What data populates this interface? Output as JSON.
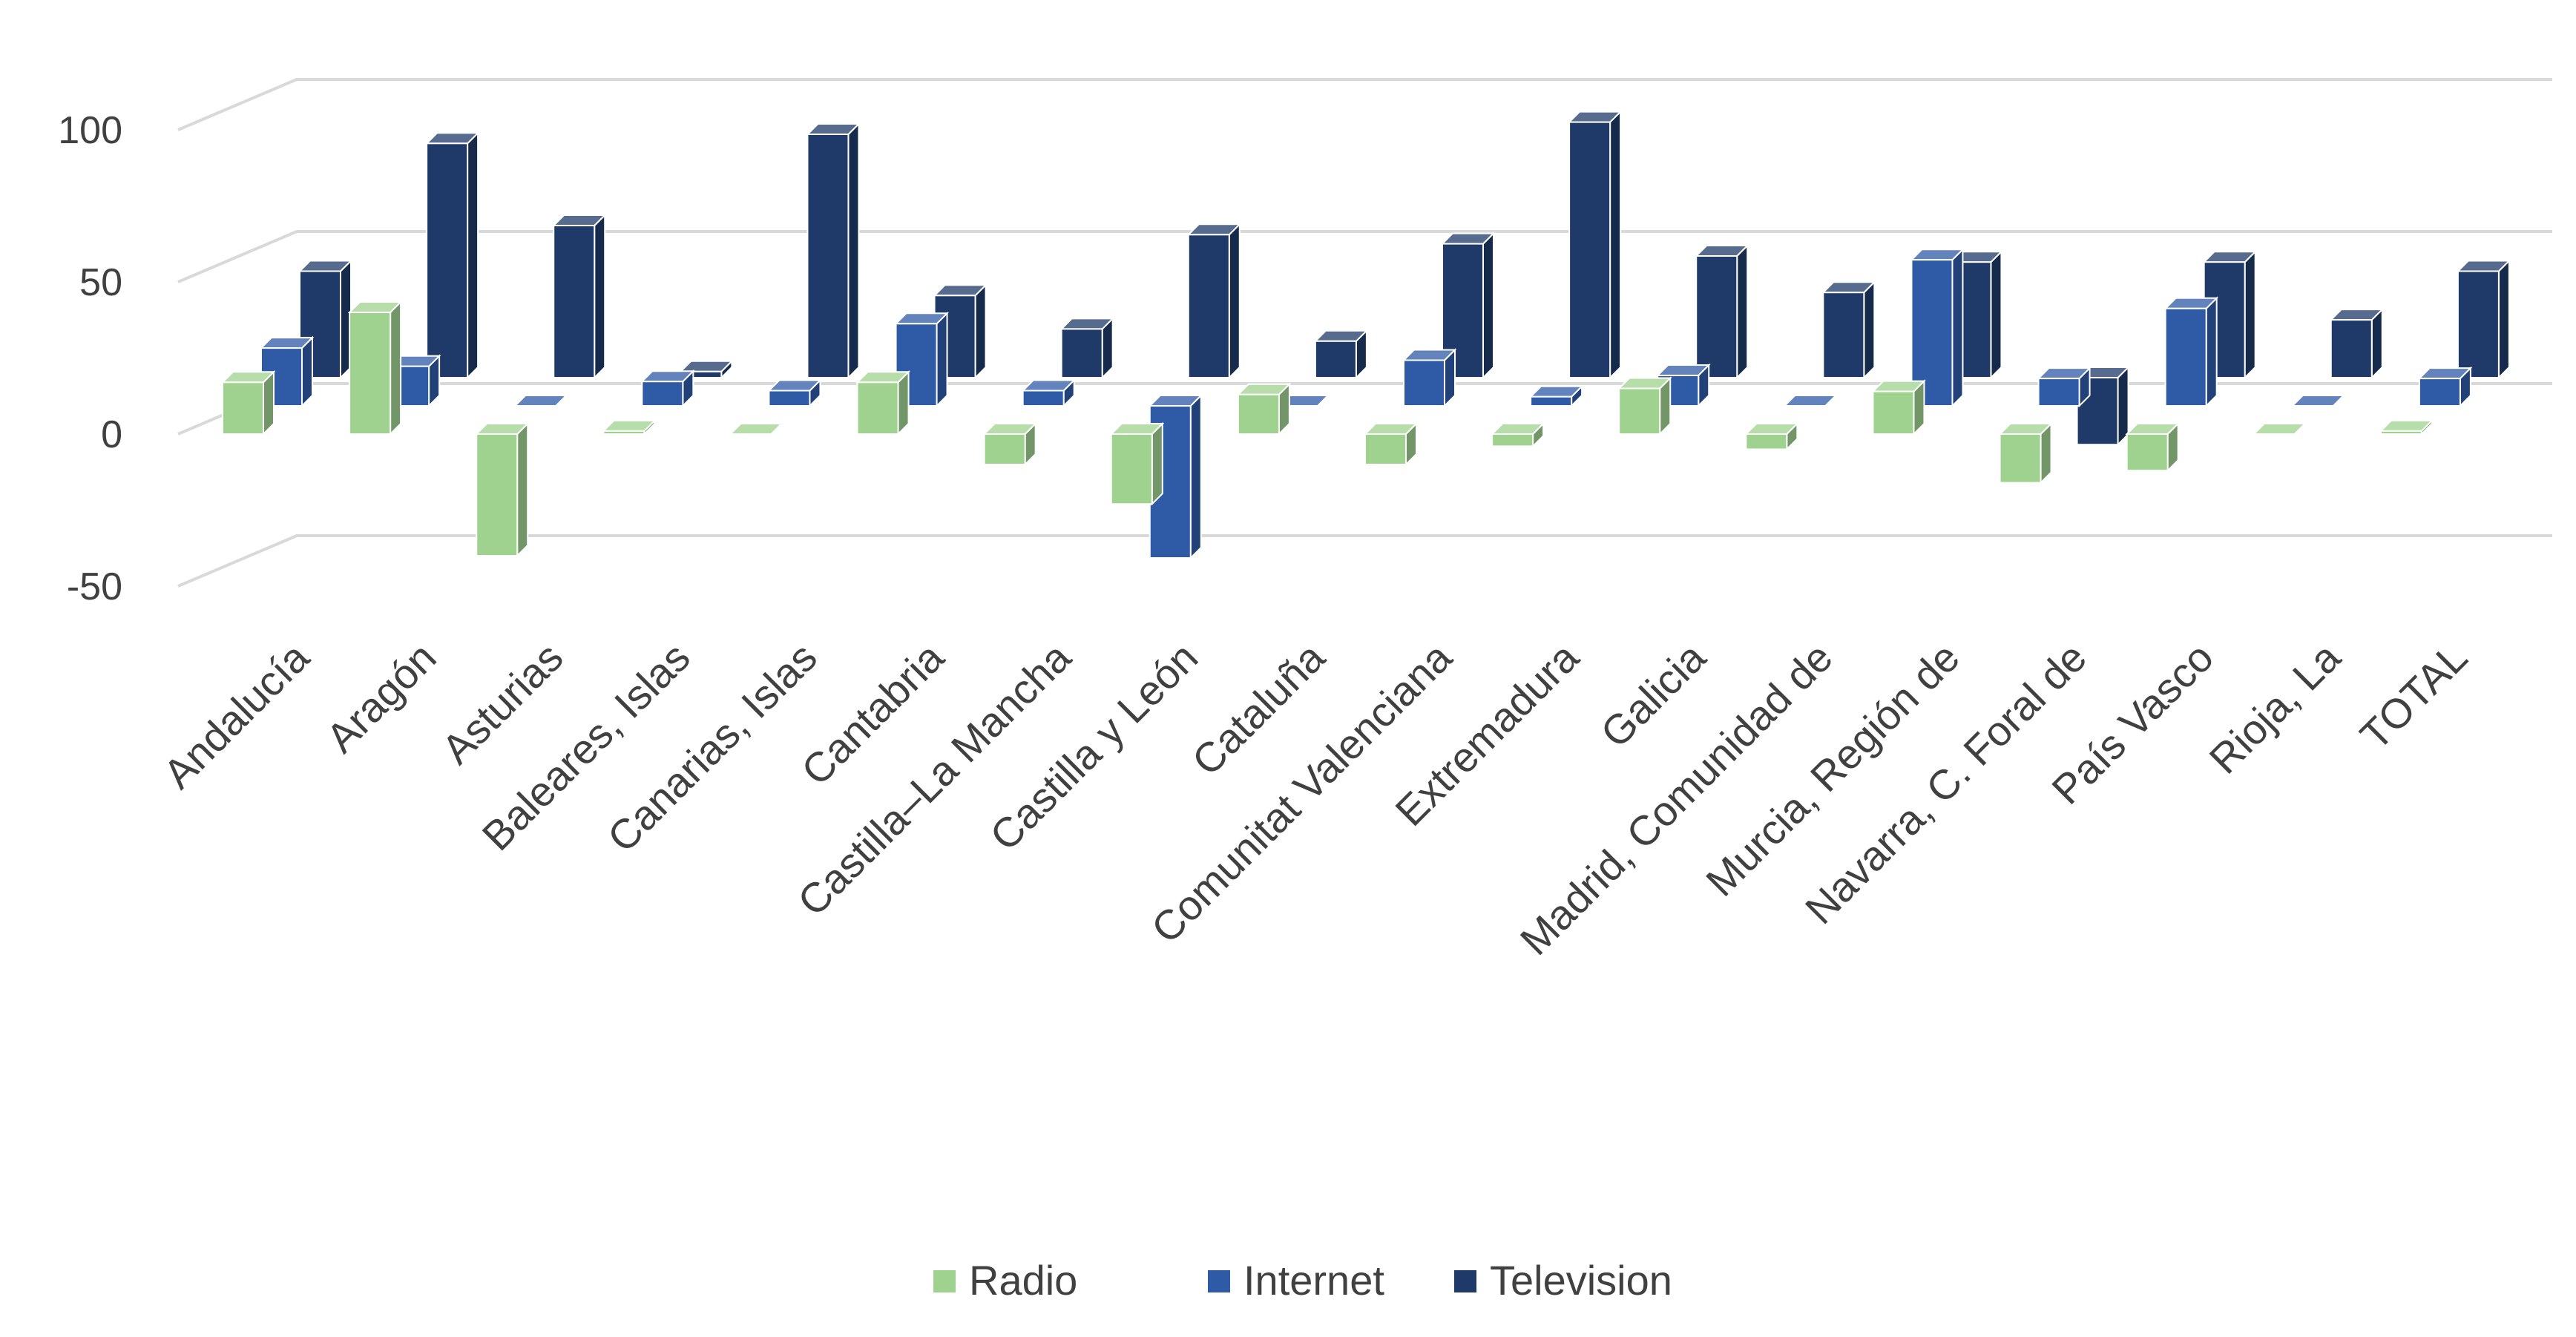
{
  "chart_data": {
    "type": "bar",
    "variant": "3d-column",
    "title": "",
    "xlabel": "",
    "ylabel": "",
    "ylim": [
      -50,
      100
    ],
    "yticks": [
      -50,
      0,
      50,
      100
    ],
    "grid": true,
    "legend_position": "bottom",
    "categories": [
      "Andalucía",
      "Aragón",
      "Asturias",
      "Baleares, Islas",
      "Canarias, Islas",
      "Cantabria",
      "Castilla–La Mancha",
      "Castilla y León",
      "Cataluña",
      "Comunitat Valenciana",
      "Extremadura",
      "Galicia",
      "Madrid, Comunidad de",
      "Murcia, Región de",
      "Navarra, C. Foral de",
      "País Vasco",
      "Rioja, La",
      "TOTAL"
    ],
    "series": [
      {
        "name": "Radio",
        "color": "#9fd18f",
        "values": [
          17,
          40,
          -40,
          1,
          0,
          17,
          -10,
          -23,
          13,
          -10,
          -4,
          15,
          -5,
          14,
          -16,
          -12,
          0,
          1
        ]
      },
      {
        "name": "Internet",
        "color": "#2e5aa6",
        "values": [
          19,
          13,
          0,
          8,
          5,
          27,
          5,
          -50,
          0,
          15,
          3,
          10,
          0,
          48,
          9,
          32,
          0,
          9
        ]
      },
      {
        "name": "Television",
        "color": "#1f3a68",
        "values": [
          35,
          77,
          50,
          2,
          80,
          27,
          16,
          47,
          12,
          44,
          84,
          40,
          28,
          38,
          -22,
          38,
          19,
          35
        ]
      }
    ]
  }
}
